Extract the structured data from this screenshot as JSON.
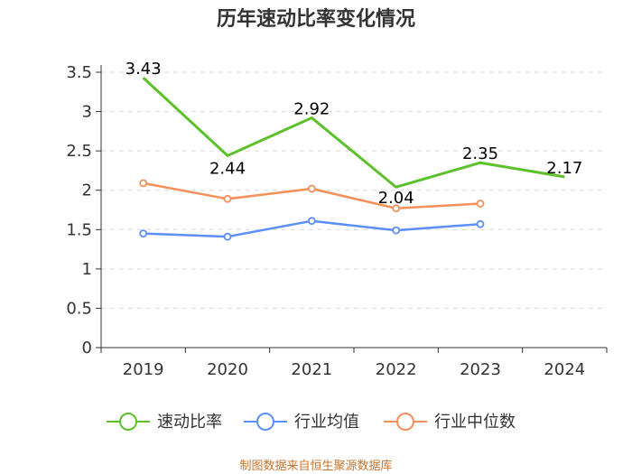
{
  "chart_data": {
    "type": "line",
    "title": "历年速动比率变化情况",
    "categories": [
      "2019",
      "2020",
      "2021",
      "2022",
      "2023",
      "2024"
    ],
    "ylim": [
      0,
      3.5
    ],
    "yticks": [
      "0",
      "0.5",
      "1",
      "1.5",
      "2",
      "2.5",
      "3",
      "3.5"
    ],
    "grid": true,
    "legend_position": "bottom",
    "series": [
      {
        "name": "速动比率",
        "color": "#5cc12a",
        "values": [
          3.43,
          2.44,
          2.92,
          2.04,
          2.35,
          2.17
        ],
        "labels": [
          "3.43",
          "2.44",
          "2.92",
          "2.04",
          "2.35",
          "2.17"
        ]
      },
      {
        "name": "行业均值",
        "color": "#5b8ff9",
        "values": [
          1.45,
          1.41,
          1.61,
          1.49,
          1.57,
          null
        ]
      },
      {
        "name": "行业中位数",
        "color": "#f5905a",
        "values": [
          2.09,
          1.89,
          2.02,
          1.77,
          1.83,
          null
        ]
      }
    ]
  },
  "source_text": "制图数据来自恒生聚源数据库"
}
